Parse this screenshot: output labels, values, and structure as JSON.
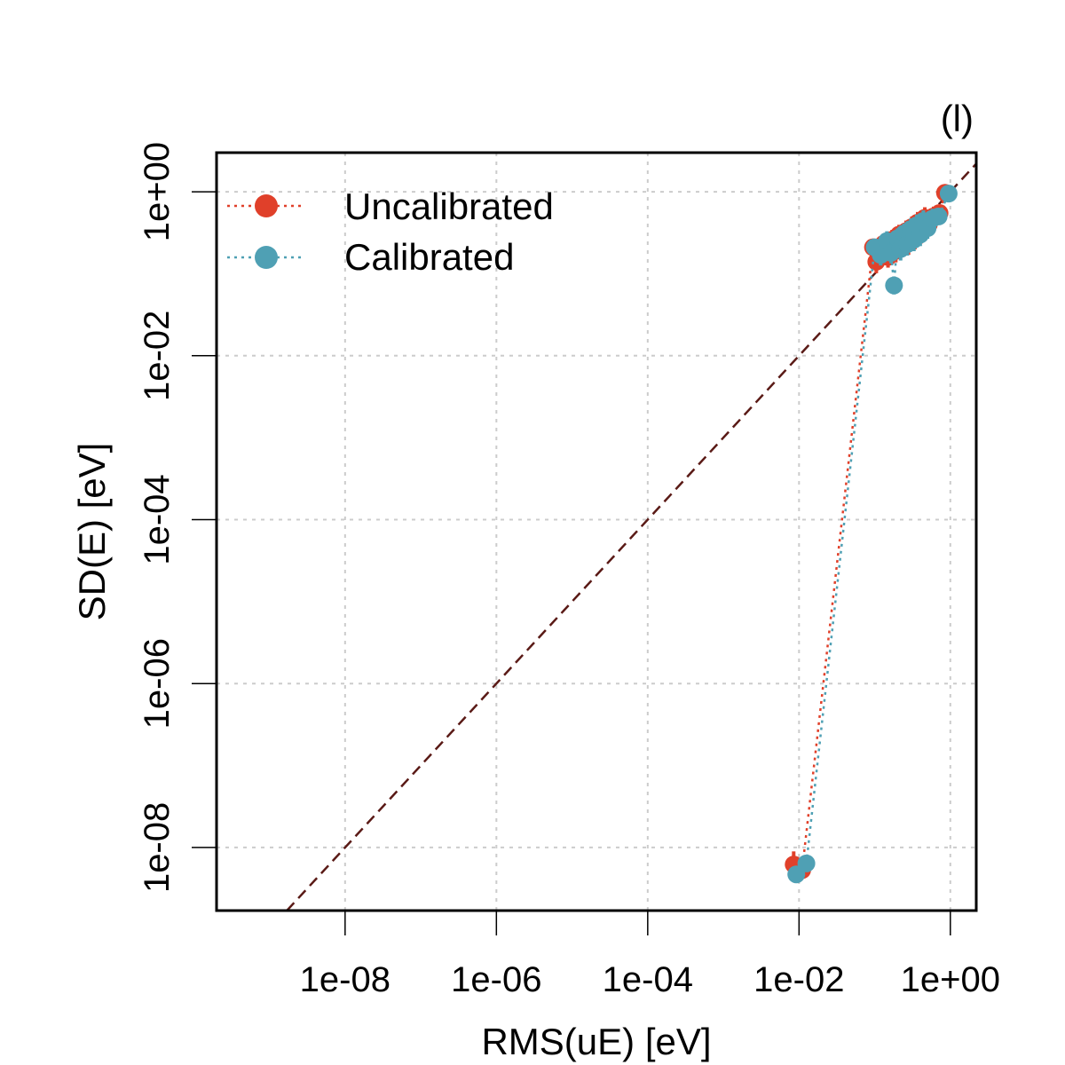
{
  "chart_data": {
    "type": "scatter",
    "panel_label": "(l)",
    "xlabel": "RMS(uE) [eV]",
    "ylabel": "SD(E) [eV]",
    "x_scale": "log",
    "y_scale": "log",
    "xlim": [
      2e-10,
      2.2
    ],
    "ylim": [
      1.7e-09,
      3.0
    ],
    "x_ticks": [
      1e-08,
      1e-06,
      0.0001,
      0.01,
      1
    ],
    "x_tick_labels": [
      "1e-08",
      "1e-06",
      "1e-04",
      "1e-02",
      "1e+00"
    ],
    "y_ticks": [
      1e-08,
      1e-06,
      0.0001,
      0.01,
      1
    ],
    "y_tick_labels": [
      "1e-08",
      "1e-06",
      "1e-04",
      "1e-02",
      "1e+00"
    ],
    "grid": true,
    "identity_line": {
      "style": "dashed",
      "color": "#5a1a16"
    },
    "legend_position": "top-left",
    "series": [
      {
        "name": "Uncalibrated",
        "color": "#e0402a",
        "line_style": "dotted",
        "points": [
          {
            "x": 0.0085,
            "y": 6.2e-09,
            "err": 0.16
          },
          {
            "x": 0.011,
            "y": 5.3e-09,
            "err": 0.0
          },
          {
            "x": 0.095,
            "y": 0.21,
            "err": 0.1
          },
          {
            "x": 0.105,
            "y": 0.14,
            "err": 0.14
          },
          {
            "x": 0.13,
            "y": 0.23,
            "err": 0.12
          },
          {
            "x": 0.15,
            "y": 0.16,
            "err": 0.13
          },
          {
            "x": 0.17,
            "y": 0.26,
            "err": 0.12
          },
          {
            "x": 0.19,
            "y": 0.19,
            "err": 0.14
          },
          {
            "x": 0.21,
            "y": 0.3,
            "err": 0.12
          },
          {
            "x": 0.23,
            "y": 0.22,
            "err": 0.14
          },
          {
            "x": 0.26,
            "y": 0.33,
            "err": 0.13
          },
          {
            "x": 0.28,
            "y": 0.24,
            "err": 0.15
          },
          {
            "x": 0.31,
            "y": 0.37,
            "err": 0.13
          },
          {
            "x": 0.34,
            "y": 0.28,
            "err": 0.15
          },
          {
            "x": 0.37,
            "y": 0.42,
            "err": 0.13
          },
          {
            "x": 0.41,
            "y": 0.33,
            "err": 0.15
          },
          {
            "x": 0.46,
            "y": 0.48,
            "err": 0.13
          },
          {
            "x": 0.52,
            "y": 0.4,
            "err": 0.13
          },
          {
            "x": 0.6,
            "y": 0.5,
            "err": 0.12
          },
          {
            "x": 0.72,
            "y": 0.55,
            "err": 0.1
          },
          {
            "x": 0.85,
            "y": 0.97,
            "err": 0.05
          }
        ]
      },
      {
        "name": "Calibrated",
        "color": "#4fa0b4",
        "line_style": "dotted",
        "points": [
          {
            "x": 0.0092,
            "y": 4.7e-09,
            "err": 0.0
          },
          {
            "x": 0.0125,
            "y": 6.4e-09,
            "err": 0.07
          },
          {
            "x": 0.1,
            "y": 0.21,
            "err": 0.1
          },
          {
            "x": 0.12,
            "y": 0.17,
            "err": 0.13
          },
          {
            "x": 0.145,
            "y": 0.25,
            "err": 0.12
          },
          {
            "x": 0.165,
            "y": 0.18,
            "err": 0.13
          },
          {
            "x": 0.18,
            "y": 0.072,
            "err": 0.11
          },
          {
            "x": 0.2,
            "y": 0.27,
            "err": 0.12
          },
          {
            "x": 0.22,
            "y": 0.2,
            "err": 0.14
          },
          {
            "x": 0.245,
            "y": 0.31,
            "err": 0.12
          },
          {
            "x": 0.27,
            "y": 0.23,
            "err": 0.14
          },
          {
            "x": 0.3,
            "y": 0.35,
            "err": 0.13
          },
          {
            "x": 0.33,
            "y": 0.26,
            "err": 0.14
          },
          {
            "x": 0.36,
            "y": 0.39,
            "err": 0.13
          },
          {
            "x": 0.4,
            "y": 0.3,
            "err": 0.14
          },
          {
            "x": 0.44,
            "y": 0.44,
            "err": 0.13
          },
          {
            "x": 0.5,
            "y": 0.36,
            "err": 0.13
          },
          {
            "x": 0.58,
            "y": 0.47,
            "err": 0.12
          },
          {
            "x": 0.7,
            "y": 0.5,
            "err": 0.1
          },
          {
            "x": 0.95,
            "y": 0.95,
            "err": 0.05
          }
        ]
      }
    ]
  }
}
